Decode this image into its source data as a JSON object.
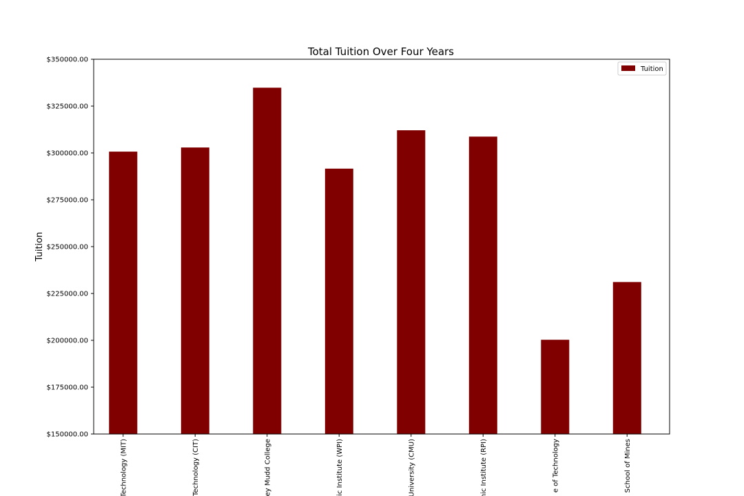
{
  "chart_data": {
    "type": "bar",
    "title": "Total Tuition Over Four Years",
    "xlabel": "",
    "ylabel": "Tuition",
    "ylim": [
      150000,
      350000
    ],
    "yticks": [
      150000,
      175000,
      200000,
      225000,
      250000,
      275000,
      300000,
      325000,
      350000
    ],
    "ytick_labels": [
      "$150000.00",
      "$175000.00",
      "$200000.00",
      "$225000.00",
      "$250000.00",
      "$275000.00",
      "$300000.00",
      "$325000.00",
      "$350000.00"
    ],
    "categories": [
      "Technology (MIT)",
      "Technology (CIT)",
      "ey Mudd College",
      "ic Institute (WPI)",
      "University (CMU)",
      "nic Institute (RPI)",
      "e of Technology",
      "School of Mines"
    ],
    "series": [
      {
        "name": "Tuition",
        "color": "#800000",
        "values": [
          300700,
          302900,
          334800,
          291600,
          312100,
          308700,
          200300,
          231100
        ]
      }
    ],
    "legend": "top-right",
    "grid": false
  }
}
